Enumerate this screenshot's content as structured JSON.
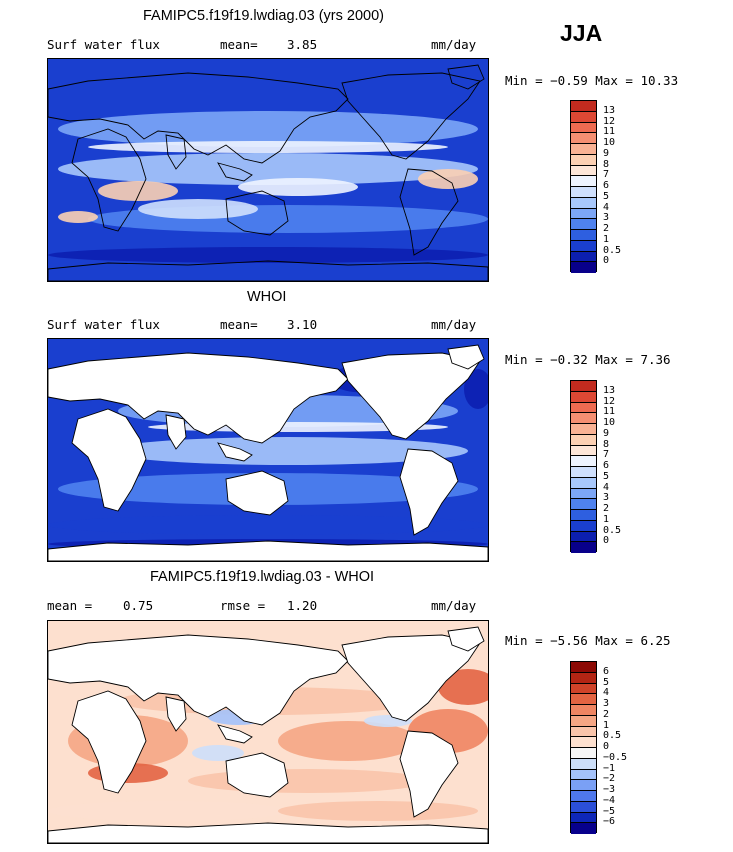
{
  "season": "JJA",
  "colors": {
    "land": "#ffffff",
    "coast": "#000000",
    "model_ramp": [
      "#08008a",
      "#0c1fb0",
      "#1a3fcf",
      "#2e5fe0",
      "#4f82ee",
      "#7ca6f6",
      "#a8c8fb",
      "#cfe0fd",
      "#eef4ff",
      "#fde6d8",
      "#fcd0b3",
      "#f9b294",
      "#f58f72",
      "#ee6b51",
      "#dd4834",
      "#c22b1f",
      "#a01010",
      "#7d0000"
    ],
    "diff_ramp": [
      "#07008c",
      "#0e27b8",
      "#2b4fd8",
      "#4f78ec",
      "#7aa0f5",
      "#a4c2fa",
      "#cddff9",
      "#f6f6f6",
      "#fde0cf",
      "#f9c4aa",
      "#f5a684",
      "#ef8562",
      "#e36442",
      "#cf4329",
      "#b32514",
      "#8c0a05"
    ]
  },
  "panels": [
    {
      "id": "model",
      "title": "FAMIPC5.f19f19.lwdiag.03 (yrs 2000)",
      "left_label": "Surf water flux",
      "stat_label": "mean=",
      "stat_value": "3.85",
      "unit": "mm/day",
      "minmax": "Min =  −0.59 Max =  10.33"
    },
    {
      "id": "obs",
      "title": "WHOI",
      "left_label": "Surf water flux",
      "stat_label": "mean=",
      "stat_value": "3.10",
      "unit": "mm/day",
      "minmax": "Min =  −0.32 Max =   7.36"
    },
    {
      "id": "diff",
      "title": "FAMIPC5.f19f19.lwdiag.03 - WHOI",
      "left_label": "mean =",
      "left_value": "0.75",
      "stat_label": "rmse =",
      "stat_value": "1.20",
      "unit": "mm/day",
      "minmax": "Min =  −5.56 Max =   6.25"
    }
  ],
  "chart_data": [
    {
      "type": "heatmap",
      "title": "FAMIPC5.f19f19.lwdiag.03 (yrs 2000)",
      "variable": "Surf water flux",
      "units": "mm/day",
      "mean": 3.85,
      "min": -0.59,
      "max": 10.33,
      "colorbar_levels": [
        "13",
        "12",
        "11",
        "10",
        "9",
        "8",
        "7",
        "6",
        "5",
        "4",
        "3",
        "2",
        "1",
        "0.5",
        "0"
      ]
    },
    {
      "type": "heatmap",
      "title": "WHOI",
      "variable": "Surf water flux",
      "units": "mm/day",
      "mean": 3.1,
      "min": -0.32,
      "max": 7.36,
      "colorbar_levels": [
        "13",
        "12",
        "11",
        "10",
        "9",
        "8",
        "7",
        "6",
        "5",
        "4",
        "3",
        "2",
        "1",
        "0.5",
        "0"
      ]
    },
    {
      "type": "heatmap",
      "title": "FAMIPC5.f19f19.lwdiag.03 - WHOI",
      "units": "mm/day",
      "mean": 0.75,
      "rmse": 1.2,
      "min": -5.56,
      "max": 6.25,
      "colorbar_levels": [
        "6",
        "5",
        "4",
        "3",
        "2",
        "1",
        "0.5",
        "0",
        "−0.5",
        "−1",
        "−2",
        "−3",
        "−4",
        "−5",
        "−6"
      ]
    }
  ]
}
